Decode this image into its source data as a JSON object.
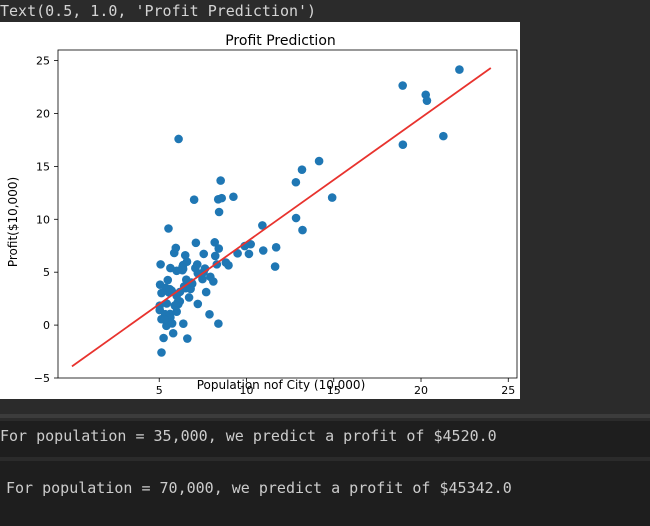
{
  "output_text": "Text(0.5, 1.0, 'Profit Prediction')",
  "results": [
    "For population = 35,000, we predict a profit of $4520.0",
    "For population = 70,000, we predict a profit of $45342.0"
  ],
  "colors": {
    "points": "#1f77b4",
    "line": "#e8332e",
    "background": "#2b2b2b"
  },
  "chart_data": {
    "type": "scatter",
    "title": "Profit Prediction",
    "xlabel": "Population nof City (10,000)",
    "ylabel": "Profit($10,000)",
    "xlim": [
      -0.8,
      25.5
    ],
    "ylim": [
      -5,
      26
    ],
    "xticks": [
      5,
      10,
      15,
      20,
      25
    ],
    "yticks": [
      -5,
      0,
      5,
      10,
      15,
      20,
      25
    ],
    "grid": false,
    "series": [
      {
        "type": "scatter",
        "x": [
          6.11,
          5.53,
          8.52,
          7.0,
          5.86,
          8.38,
          7.48,
          8.58,
          6.49,
          5.05,
          5.71,
          14.16,
          5.73,
          8.41,
          5.64,
          5.37,
          6.37,
          5.13,
          6.43,
          7.07,
          6.19,
          20.27,
          5.49,
          6.33,
          5.56,
          18.95,
          12.83,
          10.96,
          13.18,
          22.2,
          5.25,
          6.59,
          9.25,
          5.89,
          8.21,
          7.93,
          8.1,
          5.61,
          12.84,
          6.35,
          5.41,
          6.89,
          5.64,
          10.14,
          5.62,
          6.0,
          5.03,
          6.55,
          7.54,
          5.03,
          10.24,
          5.08,
          5.13,
          5.43,
          6.18,
          21.28,
          14.91,
          18.96,
          7.21,
          8.3,
          7.1,
          7.88,
          8.43,
          6.37,
          5.95,
          7.55,
          8.18,
          5.41,
          5.34,
          7.21,
          6.61,
          7.18,
          6.8,
          5.3,
          6.09,
          6.11,
          5.13,
          7.62,
          6.85,
          20.34,
          5.74,
          6.38,
          6.05,
          6.0,
          5.8,
          6.33,
          6.51,
          8.97,
          9.49,
          8.39,
          9.9,
          13.21,
          10.91,
          11.7,
          6.0,
          7.69,
          8.82,
          11.64,
          6.71
        ],
        "y": [
          17.59,
          9.13,
          13.66,
          11.85,
          6.82,
          11.89,
          4.35,
          12.0,
          6.6,
          3.82,
          3.25,
          15.5,
          3.16,
          7.23,
          0.72,
          3.51,
          5.3,
          0.56,
          3.65,
          5.39,
          3.14,
          21.77,
          4.26,
          5.19,
          3.08,
          22.64,
          13.5,
          7.05,
          14.69,
          24.15,
          -1.22,
          5.99,
          12.13,
          1.85,
          6.54,
          4.56,
          4.12,
          3.39,
          10.12,
          5.5,
          0.56,
          3.91,
          5.39,
          6.73,
          1.05,
          5.13,
          1.84,
          4.29,
          5.0,
          1.42,
          7.64,
          5.74,
          3.03,
          2.04,
          2.24,
          17.86,
          12.05,
          17.05,
          4.89,
          5.74,
          7.78,
          1.02,
          10.69,
          5.68,
          7.29,
          6.73,
          7.82,
          -0.07,
          1.03,
          2.0,
          -1.27,
          5.74,
          3.42,
          0.55,
          1.97,
          2.18,
          -2.59,
          5.34,
          4.02,
          21.21,
          0.16,
          0.13,
          2.12,
          1.27,
          -0.77,
          5.47,
          3.49,
          5.65,
          6.78,
          0.14,
          7.47,
          8.98,
          9.42,
          7.35,
          2.76,
          3.12,
          5.91,
          5.53,
          2.61
        ]
      },
      {
        "type": "line",
        "x": [
          0.0,
          24.0
        ],
        "y": [
          -3.9,
          24.3
        ]
      }
    ]
  }
}
